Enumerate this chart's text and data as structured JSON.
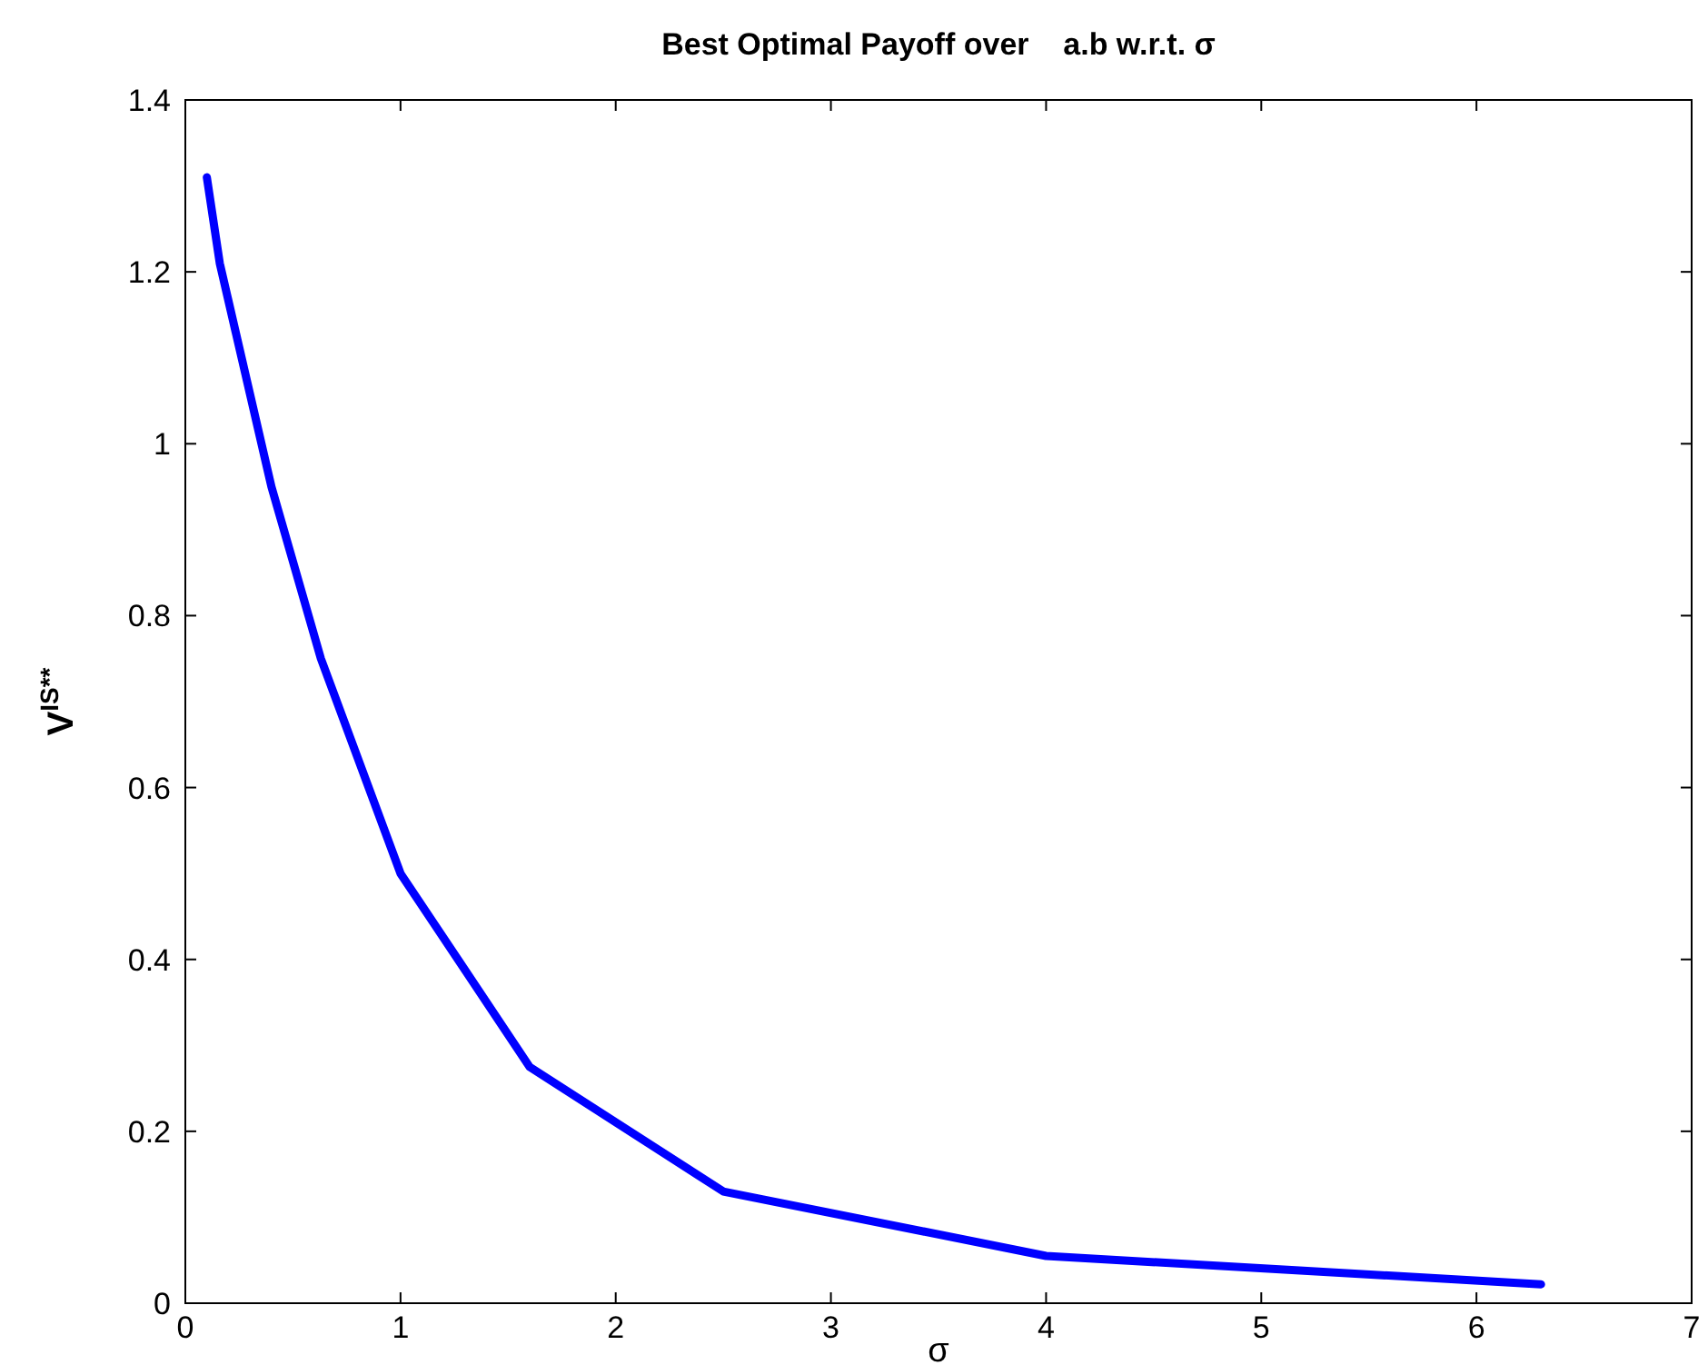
{
  "chart_data": {
    "type": "line",
    "title": "Best Optimal Payoff over    a.b w.r.t. σ",
    "xlabel": "σ",
    "ylabel": "V$^{IS**}$",
    "x": [
      0.1,
      0.16,
      0.4,
      0.63,
      1,
      1.6,
      2.5,
      4,
      6.3
    ],
    "series": [
      {
        "color": "#0000ff",
        "values": [
          1.31,
          1.21,
          0.95,
          0.75,
          0.5,
          0.275,
          0.13,
          0.055,
          0.022
        ]
      }
    ],
    "xlim": [
      0,
      7
    ],
    "xticks": [
      0,
      1,
      2,
      3,
      4,
      5,
      6,
      7
    ],
    "ylim": [
      0,
      1.4
    ],
    "yticks": [
      0,
      0.2,
      0.4,
      0.6,
      0.8,
      1,
      1.2,
      1.4
    ],
    "grid": false,
    "marker": "none",
    "line_style": "solid"
  }
}
